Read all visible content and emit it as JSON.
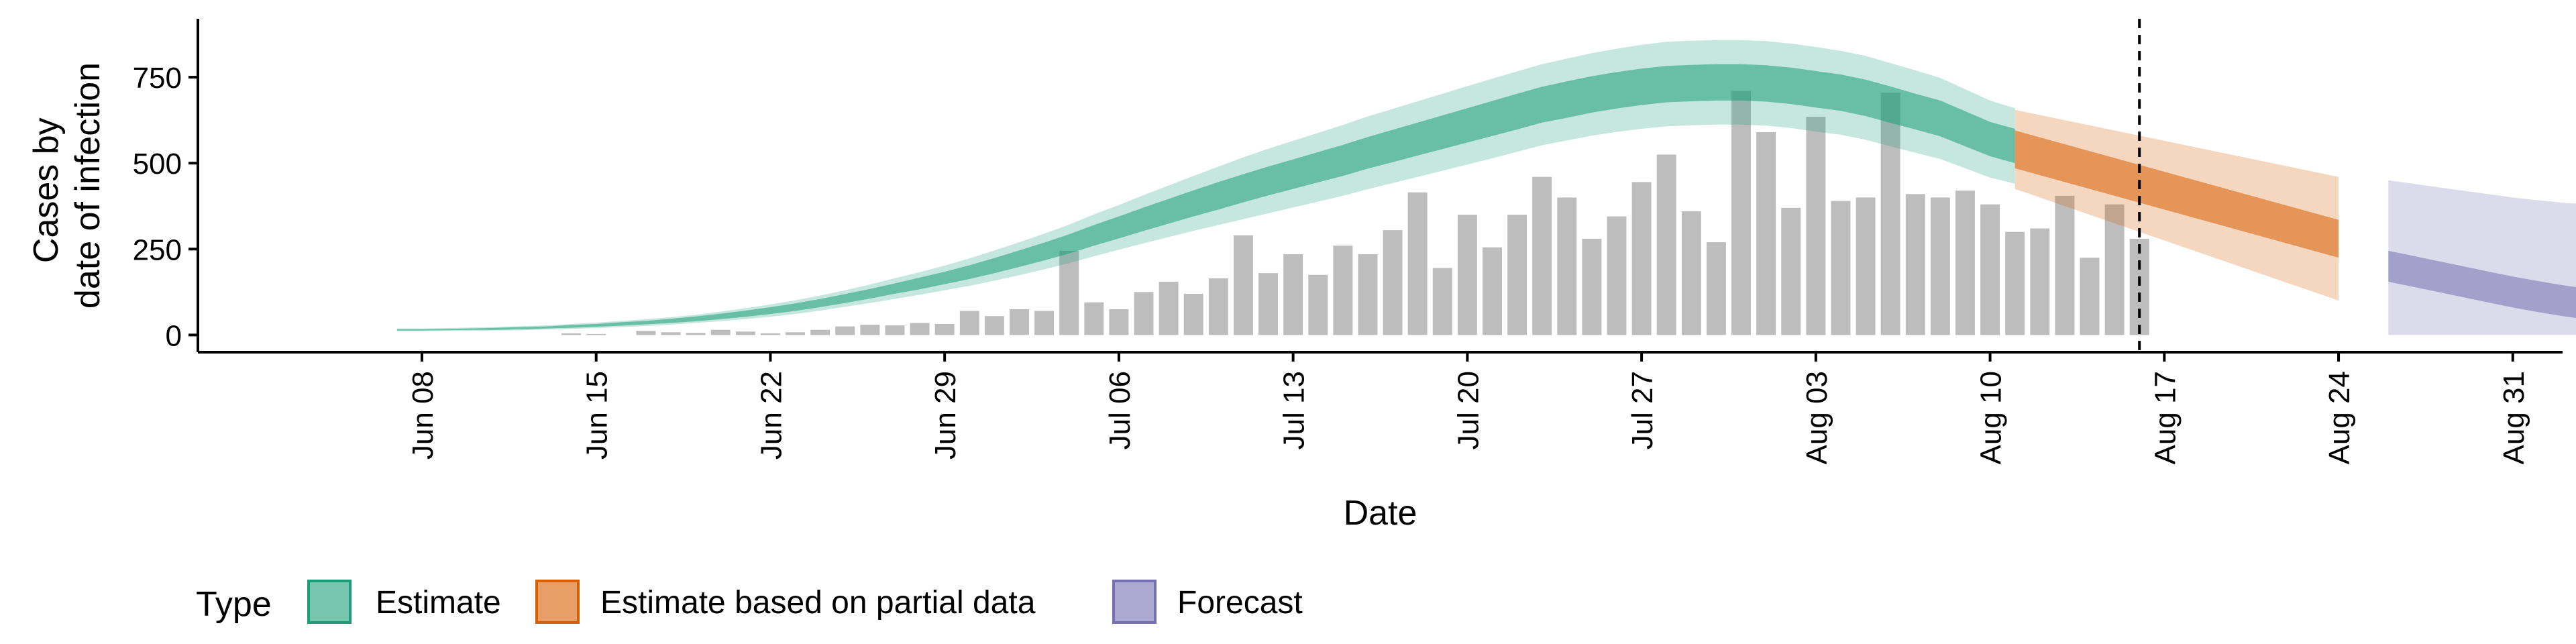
{
  "chart_data": {
    "type": "bar",
    "xlabel": "Date",
    "ylabel_lines": [
      "Cases by",
      "date of infection"
    ],
    "ylim": [
      -50,
      920
    ],
    "y_ticks": [
      0,
      250,
      500,
      750
    ],
    "x_ticks": [
      {
        "label": "Jun 08",
        "day": 8
      },
      {
        "label": "Jun 15",
        "day": 15
      },
      {
        "label": "Jun 22",
        "day": 22
      },
      {
        "label": "Jun 29",
        "day": 29
      },
      {
        "label": "Jul 06",
        "day": 36
      },
      {
        "label": "Jul 13",
        "day": 43
      },
      {
        "label": "Jul 20",
        "day": 50
      },
      {
        "label": "Jul 27",
        "day": 57
      },
      {
        "label": "Aug 03",
        "day": 64
      },
      {
        "label": "Aug 10",
        "day": 71
      },
      {
        "label": "Aug 17",
        "day": 78
      },
      {
        "label": "Aug 24",
        "day": 85
      },
      {
        "label": "Aug 31",
        "day": 92
      }
    ],
    "x_day_range": [
      -1,
      94
    ],
    "vline_day": 77,
    "cases": {
      "start_day": 7,
      "values": [
        0,
        0,
        0,
        0,
        0,
        0,
        0,
        5,
        3,
        0,
        12,
        8,
        6,
        15,
        10,
        5,
        8,
        15,
        25,
        30,
        28,
        35,
        32,
        70,
        55,
        75,
        70,
        245,
        95,
        75,
        125,
        155,
        120,
        165,
        290,
        180,
        235,
        175,
        260,
        235,
        305,
        415,
        195,
        350,
        255,
        350,
        460,
        400,
        280,
        345,
        445,
        525,
        360,
        270,
        710,
        590,
        370,
        635,
        390,
        400,
        705,
        410,
        400,
        420,
        380,
        300,
        310,
        405,
        225,
        380,
        280
      ]
    },
    "series": [
      {
        "name": "Estimate",
        "color": "#1B9E77",
        "start_day": 7,
        "median": [
          15,
          15,
          16,
          17,
          18,
          20,
          22,
          25,
          28,
          32,
          36,
          41,
          47,
          54,
          62,
          71,
          81,
          93,
          106,
          120,
          135,
          150,
          166,
          183,
          202,
          222,
          243,
          265,
          290,
          313,
          337,
          360,
          383,
          405,
          427,
          448,
          468,
          488,
          508,
          530,
          550,
          570,
          590,
          610,
          630,
          650,
          670,
          685,
          700,
          712,
          722,
          730,
          733,
          735,
          735,
          732,
          725,
          715,
          705,
          690,
          670,
          650,
          630,
          600,
          570,
          550
        ],
        "inner_half": [
          2,
          2,
          2,
          2,
          3,
          3,
          3,
          4,
          4,
          5,
          5,
          6,
          7,
          8,
          9,
          10,
          11,
          12,
          13,
          14,
          15,
          17,
          18,
          20,
          22,
          24,
          26,
          28,
          30,
          32,
          34,
          36,
          38,
          40,
          41,
          42,
          43,
          44,
          45,
          46,
          47,
          48,
          49,
          50,
          51,
          52,
          52,
          53,
          53,
          53,
          53,
          53,
          53,
          53,
          53,
          53,
          53,
          53,
          53,
          53,
          53,
          52,
          52,
          51,
          50,
          50
        ],
        "outer_half": [
          4,
          4,
          4,
          5,
          5,
          6,
          6,
          7,
          8,
          9,
          10,
          11,
          12,
          14,
          16,
          18,
          20,
          22,
          24,
          27,
          30,
          33,
          36,
          40,
          44,
          48,
          52,
          56,
          61,
          65,
          70,
          75,
          80,
          85,
          90,
          94,
          97,
          100,
          103,
          106,
          108,
          110,
          112,
          114,
          116,
          117,
          118,
          119,
          120,
          121,
          122,
          123,
          123,
          123,
          123,
          123,
          123,
          123,
          122,
          122,
          121,
          120,
          118,
          115,
          112,
          110
        ]
      },
      {
        "name": "Estimate based on partial data",
        "color": "#D95F02",
        "start_day": 72,
        "median": [
          540,
          520,
          500,
          480,
          460,
          440,
          420,
          400,
          380,
          360,
          340,
          320,
          300,
          280
        ],
        "inner_half": [
          55,
          55,
          55,
          55,
          55,
          55,
          55,
          55,
          55,
          55,
          55,
          55,
          55,
          55
        ],
        "outer_half": [
          115,
          120,
          125,
          130,
          135,
          140,
          145,
          150,
          155,
          160,
          165,
          170,
          175,
          180
        ]
      },
      {
        "name": "Forecast",
        "color": "#7570B3",
        "start_day": 87,
        "median": [
          200,
          185,
          170,
          155,
          140,
          125,
          112,
          100,
          90,
          80,
          70,
          62,
          55,
          48
        ],
        "inner_half": [
          45,
          45,
          45,
          45,
          45,
          45,
          45,
          45,
          45,
          45,
          45,
          45,
          45,
          45
        ],
        "outer_half": [
          250,
          255,
          260,
          265,
          270,
          275,
          280,
          285,
          290,
          295,
          300,
          305,
          310,
          315
        ]
      }
    ],
    "legend": {
      "title": "Type",
      "position": "bottom-left",
      "items": [
        "Estimate",
        "Estimate based on partial data",
        "Forecast"
      ]
    }
  }
}
